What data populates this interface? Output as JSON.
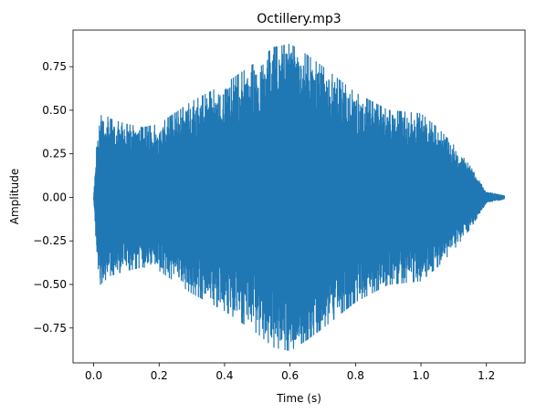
{
  "chart_data": {
    "type": "line",
    "title": "Octillery.mp3",
    "xlabel": "Time (s)",
    "ylabel": "Amplitude",
    "xlim": [
      -0.063,
      1.318
    ],
    "ylim": [
      -0.95,
      0.96
    ],
    "xticks": [
      0.0,
      0.2,
      0.4,
      0.6,
      0.8,
      1.0,
      1.2
    ],
    "xtick_labels": [
      "0.0",
      "0.2",
      "0.4",
      "0.6",
      "0.8",
      "1.0",
      "1.2"
    ],
    "yticks": [
      -0.75,
      -0.5,
      -0.25,
      0.0,
      0.25,
      0.5,
      0.75
    ],
    "ytick_labels": [
      "−0.75",
      "−0.50",
      "−0.25",
      "0.00",
      "0.25",
      "0.50",
      "0.75"
    ],
    "grid": false,
    "line_color": "#1f77b4",
    "series": [
      {
        "duration_s": 1.255,
        "envelope_x": [
          0.0,
          0.01,
          0.02,
          0.05,
          0.1,
          0.15,
          0.2,
          0.3,
          0.4,
          0.5,
          0.55,
          0.6,
          0.65,
          0.7,
          0.8,
          0.9,
          1.0,
          1.05,
          1.1,
          1.15,
          1.2,
          1.255
        ],
        "envelope_y": [
          0.0,
          0.35,
          0.5,
          0.45,
          0.42,
          0.4,
          0.42,
          0.55,
          0.65,
          0.78,
          0.86,
          0.88,
          0.82,
          0.75,
          0.6,
          0.5,
          0.48,
          0.4,
          0.3,
          0.18,
          0.03,
          0.01
        ]
      }
    ]
  }
}
